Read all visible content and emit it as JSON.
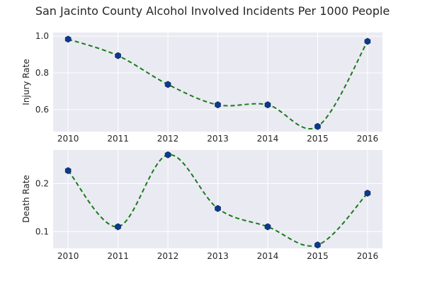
{
  "chart_title": "San Jacinto County Alcohol Involved Incidents Per 1000 People",
  "chart_data": [
    {
      "type": "line",
      "title": "San Jacinto County Alcohol Involved Incidents Per 1000 People",
      "xlabel": "",
      "ylabel": "Injury Rate",
      "x": [
        "2010",
        "2011",
        "2012",
        "2013",
        "2014",
        "2015",
        "2016"
      ],
      "series": [
        {
          "values": [
            0.984,
            0.894,
            0.737,
            0.626,
            0.626,
            0.508,
            0.972
          ]
        }
      ],
      "xlim": [
        2009.7,
        2016.3
      ],
      "ylim": [
        0.48,
        1.02
      ],
      "yticks": [
        "0.6",
        "0.8",
        "1.0"
      ],
      "ytick_values": [
        0.6,
        0.8,
        1.0
      ],
      "grid": true,
      "line_style": "dashed, smoothed",
      "line_color": "#1a7a1a",
      "marker": "hexagon",
      "marker_color": "#0b3b8c"
    },
    {
      "type": "line",
      "title": "",
      "xlabel": "",
      "ylabel": "Death Rate",
      "x": [
        "2010",
        "2011",
        "2012",
        "2013",
        "2014",
        "2015",
        "2016"
      ],
      "series": [
        {
          "values": [
            0.227,
            0.11,
            0.26,
            0.148,
            0.11,
            0.072,
            0.18
          ]
        }
      ],
      "xlim": [
        2009.7,
        2016.3
      ],
      "ylim": [
        0.065,
        0.27
      ],
      "yticks": [
        "0.1",
        "0.2"
      ],
      "ytick_values": [
        0.1,
        0.2
      ],
      "grid": true,
      "line_style": "dashed, smoothed",
      "line_color": "#1a7a1a",
      "marker": "hexagon",
      "marker_color": "#0b3b8c"
    }
  ],
  "colors": {
    "axes_background": "#eaeaf2",
    "grid": "#ffffff",
    "text": "#262626"
  }
}
